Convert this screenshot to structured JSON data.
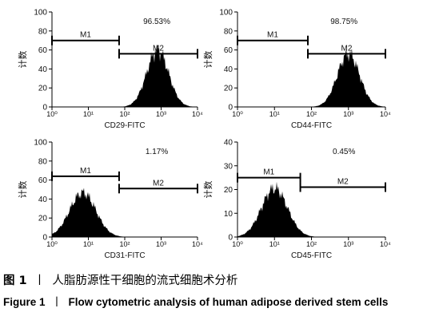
{
  "figure": {
    "caption_cn": {
      "label": "图 1",
      "separator": "丨",
      "text": "人脂肪源性干细胞的流式细胞术分析"
    },
    "caption_en": {
      "label": "Figure 1",
      "separator": "丨",
      "text": "Flow cytometric analysis of human adipose derived stem cells"
    }
  },
  "chart_data": [
    {
      "type": "histogram",
      "title": "",
      "xlabel": "CD29-FITC",
      "ylabel": "计数",
      "x_scale": "log",
      "xlim": [
        1,
        10000
      ],
      "ylim": [
        0,
        100
      ],
      "yticks": [
        0,
        20,
        40,
        60,
        80,
        100
      ],
      "xticks": [
        1,
        10,
        100,
        1000,
        10000
      ],
      "xtick_labels": [
        "10⁰",
        "10¹",
        "10²",
        "10³",
        "10⁴"
      ],
      "peak_x": 800,
      "peak_y": 64,
      "spread_log": 0.3,
      "gates": [
        {
          "label": "M1",
          "x_start": 1,
          "x_end": 70,
          "y": 70
        },
        {
          "label": "M2",
          "x_start": 70,
          "x_end": 10000,
          "y": 56
        }
      ],
      "annotation": "96.53%"
    },
    {
      "type": "histogram",
      "title": "",
      "xlabel": "CD44-FITC",
      "ylabel": "计数",
      "x_scale": "log",
      "xlim": [
        1,
        10000
      ],
      "ylim": [
        0,
        100
      ],
      "yticks": [
        0,
        20,
        40,
        60,
        80,
        100
      ],
      "xticks": [
        1,
        10,
        100,
        1000,
        10000
      ],
      "xtick_labels": [
        "10⁰",
        "10¹",
        "10²",
        "10³",
        "10⁴"
      ],
      "peak_x": 1000,
      "peak_y": 60,
      "spread_log": 0.3,
      "gates": [
        {
          "label": "M1",
          "x_start": 1,
          "x_end": 80,
          "y": 70
        },
        {
          "label": "M2",
          "x_start": 80,
          "x_end": 10000,
          "y": 56
        }
      ],
      "annotation": "98.75%"
    },
    {
      "type": "histogram",
      "title": "",
      "xlabel": "CD31-FITC",
      "ylabel": "计数",
      "x_scale": "log",
      "xlim": [
        1,
        10000
      ],
      "ylim": [
        0,
        100
      ],
      "yticks": [
        0,
        20,
        40,
        60,
        80,
        100
      ],
      "xticks": [
        1,
        10,
        100,
        1000,
        10000
      ],
      "xtick_labels": [
        "10⁰",
        "10¹",
        "10²",
        "10³",
        "10⁴"
      ],
      "peak_x": 7,
      "peak_y": 50,
      "spread_log": 0.36,
      "gates": [
        {
          "label": "M1",
          "x_start": 1,
          "x_end": 70,
          "y": 64
        },
        {
          "label": "M2",
          "x_start": 70,
          "x_end": 10000,
          "y": 51
        }
      ],
      "annotation": "1.17%"
    },
    {
      "type": "histogram",
      "title": "",
      "xlabel": "CD45-FITC",
      "ylabel": "计数",
      "x_scale": "log",
      "xlim": [
        1,
        10000
      ],
      "ylim": [
        0,
        40
      ],
      "yticks": [
        0,
        10,
        20,
        30,
        40
      ],
      "xticks": [
        1,
        10,
        100,
        1000,
        10000
      ],
      "xtick_labels": [
        "10⁰",
        "10¹",
        "10²",
        "10³",
        "10⁴"
      ],
      "peak_x": 10,
      "peak_y": 22,
      "spread_log": 0.35,
      "gates": [
        {
          "label": "M1",
          "x_start": 1,
          "x_end": 50,
          "y": 25
        },
        {
          "label": "M2",
          "x_start": 50,
          "x_end": 10000,
          "y": 21
        }
      ],
      "annotation": "0.45%"
    }
  ]
}
